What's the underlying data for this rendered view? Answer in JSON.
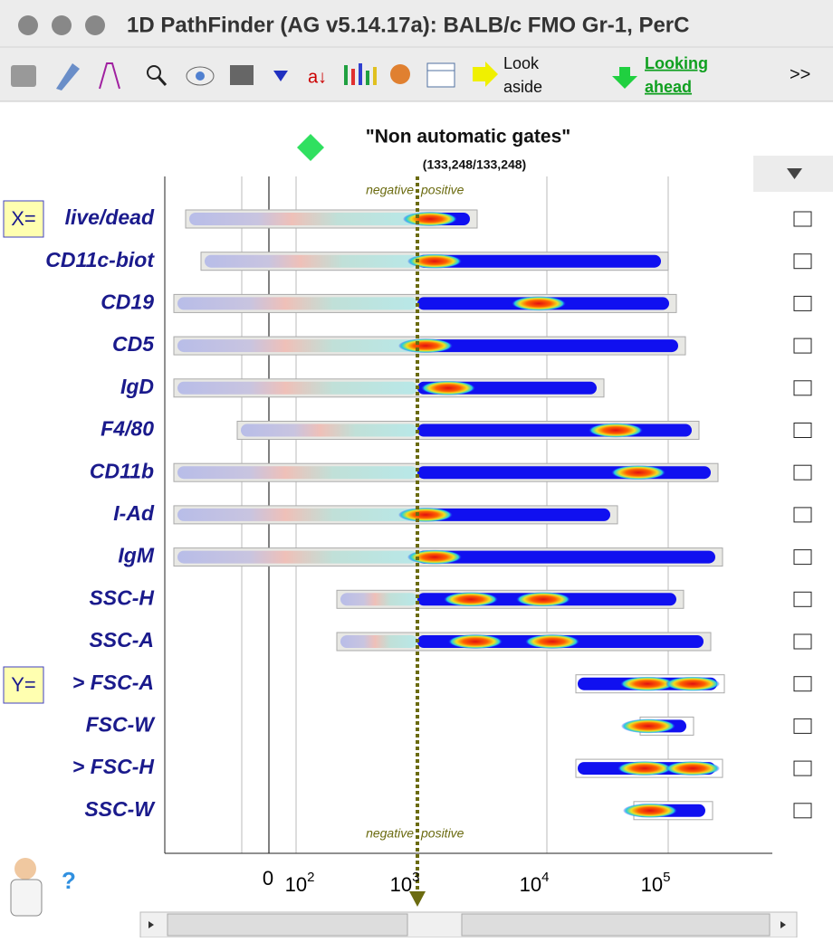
{
  "window": {
    "title": "1D PathFinder (AG v5.14.17a): BALB/c FMO Gr-1, PerC"
  },
  "toolbar": {
    "look_aside": [
      "Look",
      "aside"
    ],
    "looking_ahead": [
      "Looking",
      "ahead"
    ],
    "more": ">>"
  },
  "plot": {
    "title": "\"Non automatic gates\"",
    "count": "(133,248/133,248)",
    "negative": "negative",
    "positive": "positive",
    "x_marker": "X=",
    "y_marker": "Y=",
    "ticks": [
      "0",
      {
        "base": "10",
        "exp": "2"
      },
      {
        "base": "10",
        "exp": "3"
      },
      {
        "base": "10",
        "exp": "4"
      },
      {
        "base": "10",
        "exp": "5"
      }
    ],
    "rows": [
      "live/dead",
      "CD11c-biot",
      "CD19",
      "CD5",
      "IgD",
      "F4/80",
      "CD11b",
      "I-Ad",
      "IgM",
      "SSC-H",
      "SSC-A",
      "> FSC-A",
      "FSC-W",
      "> FSC-H",
      "SSC-W"
    ]
  }
}
